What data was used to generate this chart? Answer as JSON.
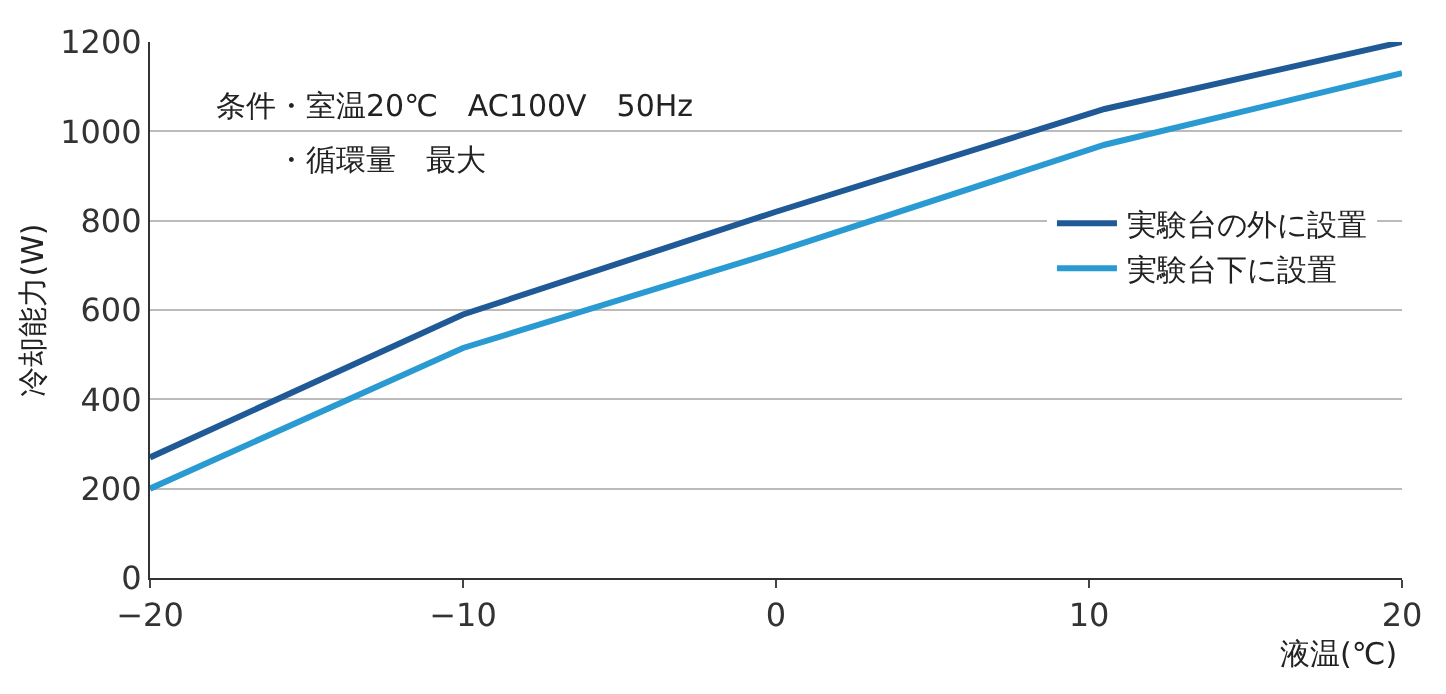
{
  "chart_data": {
    "type": "line",
    "xlabel": "液温(℃)",
    "ylabel": "冷却能力(W)",
    "xlim": [
      -20,
      20
    ],
    "xticks": [
      {
        "value": -20,
        "label": "−20"
      },
      {
        "value": -10,
        "label": "−10"
      },
      0,
      10,
      20
    ],
    "ylim": [
      0,
      1200
    ],
    "yticks": [
      0,
      200,
      400,
      600,
      800,
      1000,
      1200
    ],
    "grid": "y",
    "legend": "right",
    "marker": "none",
    "line_style": "solid",
    "annotations": [
      "条件・室温20℃　AC100V　50Hz",
      "　　・循環量　最大"
    ],
    "series": [
      {
        "name": "実験台の外に設置",
        "color": "#1f5a96",
        "x": [
          -20,
          -10,
          0,
          10.5,
          20
        ],
        "values": [
          270,
          590,
          820,
          1050,
          1200
        ]
      },
      {
        "name": "実験台下に設置",
        "color": "#2a9ad2",
        "x": [
          -20,
          -10,
          0,
          10.5,
          20
        ],
        "values": [
          200,
          515,
          730,
          970,
          1130
        ]
      }
    ]
  }
}
